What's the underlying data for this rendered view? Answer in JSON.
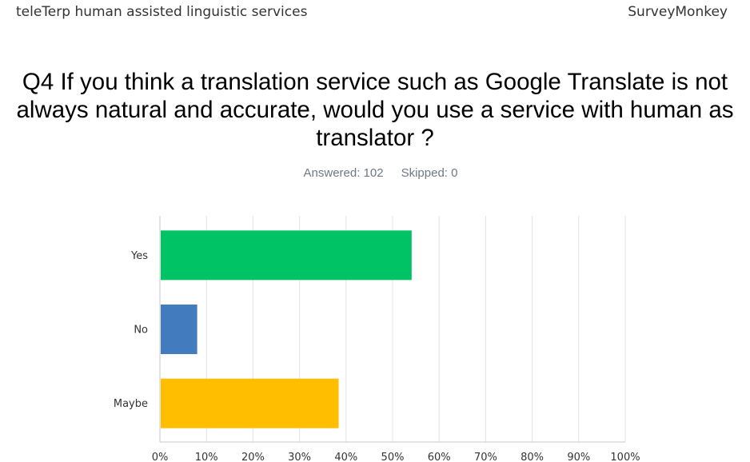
{
  "header": {
    "survey_title": "teleTerp human assisted linguistic services",
    "brand": "SurveyMonkey"
  },
  "question": {
    "text": "Q4 If you think a translation service such as Google Translate is not always natural and accurate, would you use a service with human as translator ?",
    "answered_label": "Answered: 102",
    "skipped_label": "Skipped: 0"
  },
  "chart_data": {
    "type": "bar",
    "orientation": "horizontal",
    "categories": [
      "Yes",
      "No",
      "Maybe"
    ],
    "values": [
      53.92,
      7.84,
      38.24
    ],
    "colors": [
      "#00c365",
      "#437bbf",
      "#ffbe00"
    ],
    "xlim": [
      0,
      100
    ],
    "x_ticks": [
      "0%",
      "10%",
      "20%",
      "30%",
      "40%",
      "50%",
      "60%",
      "70%",
      "80%",
      "90%",
      "100%"
    ],
    "grid": true,
    "title": "",
    "xlabel": "",
    "ylabel": ""
  }
}
